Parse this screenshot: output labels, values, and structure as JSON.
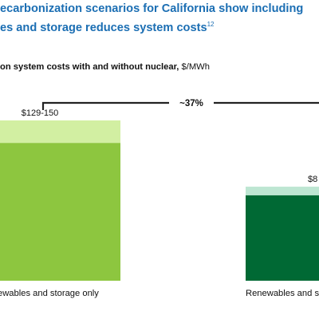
{
  "header": {
    "title_line1": "ecarbonization scenarios for California show including",
    "title_line2": "es and storage reduces system costs",
    "title_footnote": "12"
  },
  "subtitle": {
    "bold": "on system costs with and without nuclear,",
    "unit": " $/MWh"
  },
  "colors": {
    "bar1_base": "#8dc63f",
    "bar1_top": "#d2efa2",
    "bar2_base": "#006934",
    "bar2_top": "#bde6d2",
    "bracket": "#222222",
    "title": "#1b6eb3"
  },
  "chart_data": {
    "type": "bar",
    "stacked": true,
    "categories": [
      "ewables and storage only",
      "Renewables and s"
    ],
    "series": [
      {
        "values": [
          129,
          80
        ]
      },
      {
        "values": [
          21,
          8
        ]
      }
    ],
    "data_labels": [
      "$129-150",
      "$8"
    ],
    "annotation": "~37%",
    "ylim": [
      0,
      150
    ],
    "grid": false
  }
}
